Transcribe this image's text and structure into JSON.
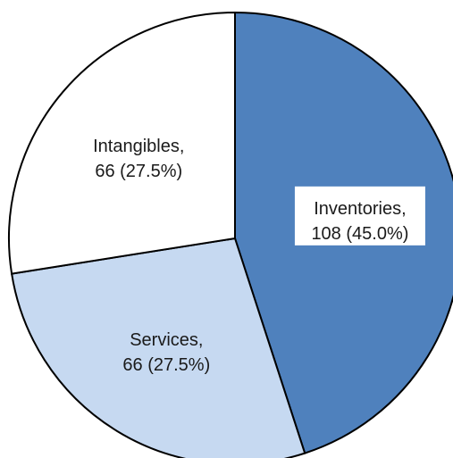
{
  "chart_data": {
    "type": "pie",
    "start_angle_deg": 0,
    "direction": "clockwise",
    "slices": [
      {
        "name": "Inventories",
        "value": 108,
        "percent": "45.0%",
        "label_line1": "Inventories,",
        "label_line2": "108 (45.0%)",
        "color": "#4f81bd",
        "label_bg": true
      },
      {
        "name": "Services",
        "value": 66,
        "percent": "27.5%",
        "label_line1": "Services,",
        "label_line2": "66 (27.5%)",
        "color": "#c6d9f1",
        "label_bg": false
      },
      {
        "name": "Intangibles",
        "value": 66,
        "percent": "27.5%",
        "label_line1": "Intangibles,",
        "label_line2": "66 (27.5%)",
        "color": "#ffffff",
        "label_bg": false
      }
    ]
  }
}
